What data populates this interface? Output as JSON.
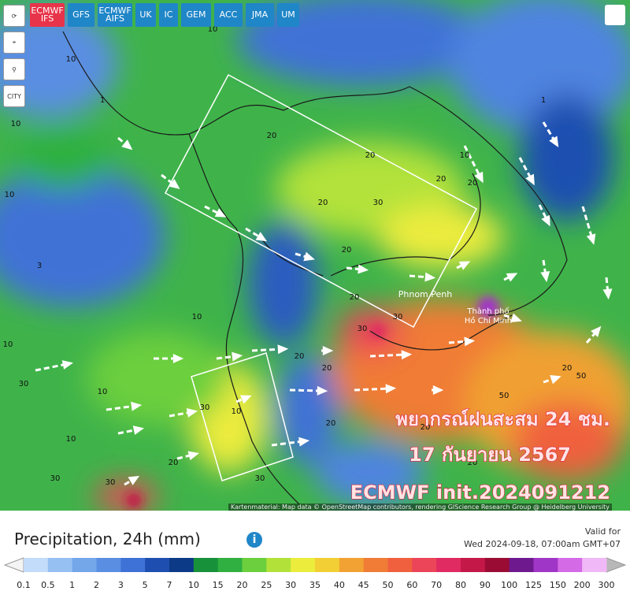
{
  "toolbar": {
    "models": [
      "ECMWF IFS",
      "GFS",
      "ECMWF AIFS",
      "UK",
      "IC",
      "GEM",
      "ACC",
      "JMA",
      "UM"
    ]
  },
  "sidebar": {
    "city": "CITY"
  },
  "map": {
    "contour_labels": [
      "10",
      "10",
      "10",
      "10",
      "3",
      "10",
      "10",
      "1",
      "10",
      "20",
      "20",
      "20",
      "10",
      "20",
      "20",
      "20",
      "30",
      "30",
      "20",
      "20",
      "20",
      "30",
      "30",
      "50",
      "20",
      "30",
      "20",
      "20",
      "10",
      "20",
      "30",
      "1",
      "10",
      "30",
      "20",
      "30",
      "50"
    ],
    "places": [
      "Phnom Penh",
      "Thành phố",
      "Hồ Chí Minh"
    ],
    "forecast": {
      "line1": "พยากรณ์ฝนสะสม 24 ชม.",
      "line2": "17 กันยายน 2567",
      "line3": "ECMWF init.2024091212"
    },
    "attribution": "Kartenmaterial: Map data © OpenStreetMap contributors, rendering GIScience Research Group @ Heidelberg University"
  },
  "legend": {
    "title": "Precipitation, 24h (mm)",
    "valid_label": "Valid for",
    "valid_time": "Wed 2024-09-18, 07:00am GMT+07",
    "ticks": [
      "0.1",
      "0.5",
      "1",
      "2",
      "3",
      "5",
      "7",
      "10",
      "15",
      "20",
      "25",
      "30",
      "35",
      "40",
      "45",
      "50",
      "60",
      "70",
      "80",
      "90",
      "100",
      "125",
      "150",
      "200",
      "300"
    ],
    "colors": [
      "#c2dcfa",
      "#96c0f2",
      "#74a6ea",
      "#5a8ee2",
      "#3f72d6",
      "#1e4fb0",
      "#0c3a86",
      "#17923a",
      "#2fb040",
      "#6ccf3e",
      "#b2e23a",
      "#ecec3c",
      "#f2cf34",
      "#f2a232",
      "#f07c36",
      "#f0603e",
      "#ec4458",
      "#e02a62",
      "#c41848",
      "#9a0c34",
      "#6e1a8e",
      "#a036c8",
      "#d46ae6",
      "#f0b8f6"
    ]
  }
}
